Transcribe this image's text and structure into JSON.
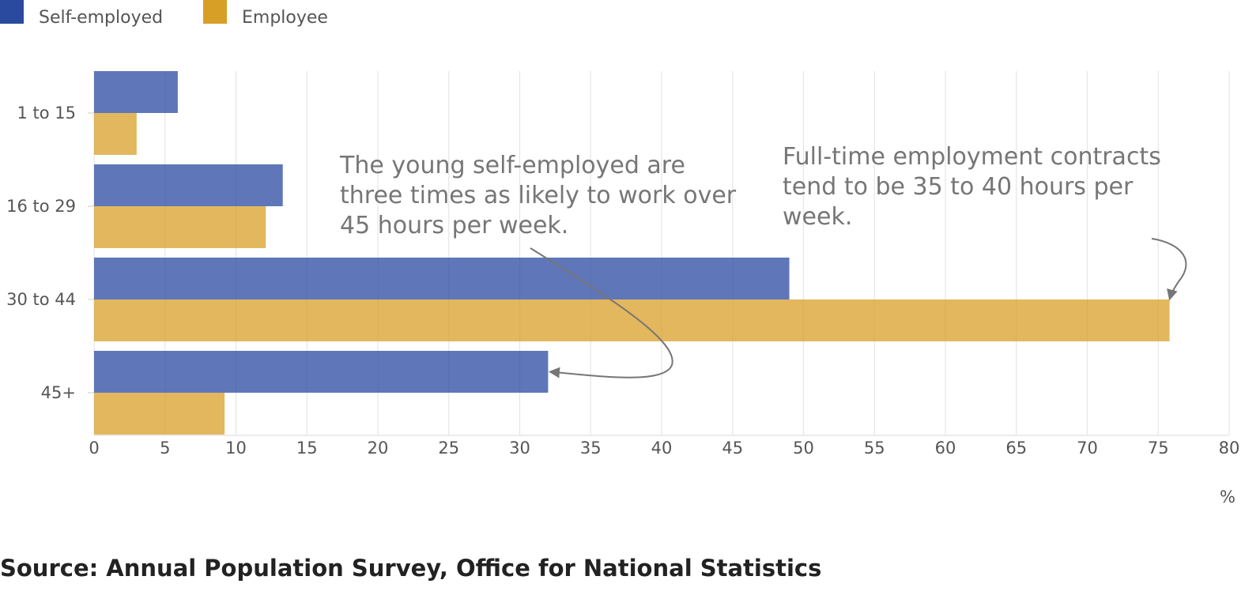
{
  "chart_data": {
    "type": "bar",
    "orientation": "horizontal",
    "categories": [
      "1 to 15",
      "16 to 29",
      "30 to 44",
      "45+"
    ],
    "series": [
      {
        "name": "Self-employed",
        "values": [
          5.9,
          13.3,
          49.0,
          32.0
        ],
        "color": "#2a4aa0"
      },
      {
        "name": "Employee",
        "values": [
          3.0,
          12.1,
          75.8,
          9.2
        ],
        "color": "#d89f27"
      }
    ],
    "xlim": [
      0,
      80
    ],
    "xticks": [
      0,
      5,
      10,
      15,
      20,
      25,
      30,
      35,
      40,
      45,
      50,
      55,
      60,
      65,
      70,
      75,
      80
    ],
    "xunit": "%",
    "grid": true,
    "legend_position": "top-left",
    "annotations": [
      {
        "lines": [
          "The young self-employed are",
          "three times as likely to work over",
          "45 hours per week."
        ],
        "points_to": {
          "category": "45+",
          "series": "Self-employed"
        }
      },
      {
        "lines": [
          "Full-time employment contracts",
          "tend to be 35 to 40 hours per",
          "week."
        ],
        "points_to": {
          "category": "30 to 44",
          "series": "Employee"
        }
      }
    ]
  },
  "source": "Source: Annual Population Survey, Office for National Statistics"
}
